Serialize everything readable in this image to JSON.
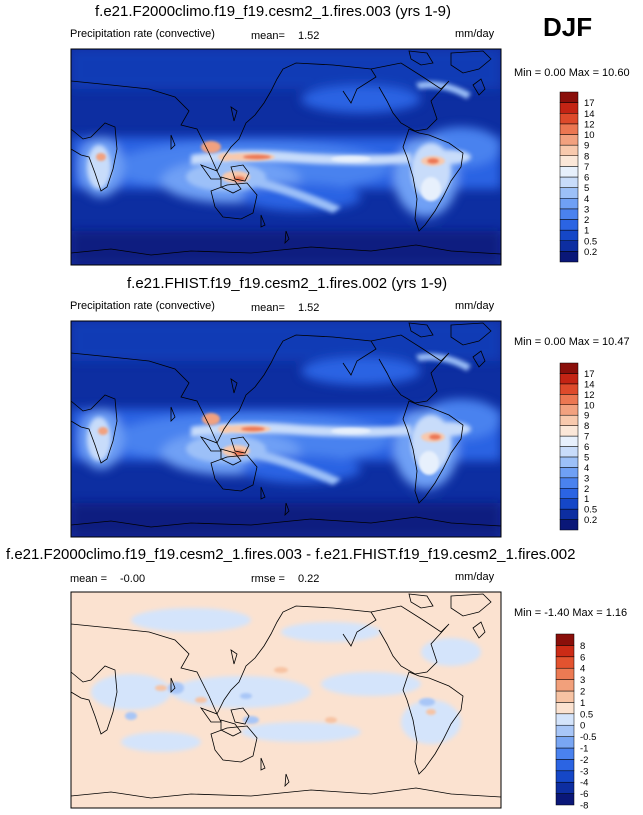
{
  "season": "DJF",
  "palette_precip": [
    "#0a1778",
    "#0d2ea1",
    "#1547c7",
    "#2b64e3",
    "#4a82ef",
    "#6fa0f5",
    "#9cc0f8",
    "#c8dcfa",
    "#e7f0fc",
    "#fbe7d8",
    "#f8c9ad",
    "#f2a17f",
    "#ec7752",
    "#de4a2b",
    "#c42414",
    "#8a0f0a"
  ],
  "palette_diff": [
    "#0a1778",
    "#0d2ea1",
    "#1547c7",
    "#2b64e3",
    "#4a82ef",
    "#79a6f3",
    "#a8c6f7",
    "#d4e4fb",
    "#fbe2d0",
    "#f7c3a3",
    "#f2a07b",
    "#ec7a53",
    "#e3532f",
    "#cc2b16",
    "#8a0f0a"
  ],
  "panels": [
    {
      "title": "f.e21.F2000climo.f19_f19.cesm2_1.fires.003 (yrs 1-9)",
      "variable": "Precipitation rate (convective)",
      "mean_label": "mean=",
      "mean_value": "1.52",
      "units": "mm/day",
      "minmax": "Min =   0.00 Max =  10.60",
      "colorbar_labels": [
        "17",
        "14",
        "12",
        "10",
        "9",
        "8",
        "7",
        "6",
        "5",
        "4",
        "3",
        "2",
        "1",
        "0.5",
        "0.2"
      ]
    },
    {
      "title": "f.e21.FHIST.f19_f19.cesm2_1.fires.002 (yrs 1-9)",
      "variable": "Precipitation rate (convective)",
      "mean_label": "mean=",
      "mean_value": "1.52",
      "units": "mm/day",
      "minmax": "Min =   0.00 Max =  10.47",
      "colorbar_labels": [
        "17",
        "14",
        "12",
        "10",
        "9",
        "8",
        "7",
        "6",
        "5",
        "4",
        "3",
        "2",
        "1",
        "0.5",
        "0.2"
      ]
    },
    {
      "title": "f.e21.F2000climo.f19_f19.cesm2_1.fires.003 - f.e21.FHIST.f19_f19.cesm2_1.fires.002",
      "mean_label": "mean =",
      "mean_value": "-0.00",
      "rmse_label": "rmse =",
      "rmse_value": "0.22",
      "units": "mm/day",
      "minmax": "Min =  -1.40 Max =   1.16",
      "colorbar_labels": [
        "8",
        "6",
        "4",
        "3",
        "2",
        "1",
        "0.5",
        "0",
        "-0.5",
        "-1",
        "-2",
        "-3",
        "-4",
        "-6",
        "-8"
      ]
    }
  ],
  "chart_data": [
    {
      "type": "heatmap",
      "title": "f.e21.F2000climo.f19_f19.cesm2_1.fires.003 (yrs 1-9)",
      "variable": "Precipitation rate (convective)",
      "units": "mm/day",
      "mean": 1.52,
      "min": 0.0,
      "max": 10.6,
      "contour_levels": [
        0.2,
        0.5,
        1,
        2,
        3,
        4,
        5,
        6,
        7,
        8,
        9,
        10,
        12,
        14,
        17
      ]
    },
    {
      "type": "heatmap",
      "title": "f.e21.FHIST.f19_f19.cesm2_1.fires.002 (yrs 1-9)",
      "variable": "Precipitation rate (convective)",
      "units": "mm/day",
      "mean": 1.52,
      "min": 0.0,
      "max": 10.47,
      "contour_levels": [
        0.2,
        0.5,
        1,
        2,
        3,
        4,
        5,
        6,
        7,
        8,
        9,
        10,
        12,
        14,
        17
      ]
    },
    {
      "type": "heatmap",
      "title": "f.e21.F2000climo.f19_f19.cesm2_1.fires.003 - f.e21.FHIST.f19_f19.cesm2_1.fires.002",
      "units": "mm/day",
      "mean": -0.0,
      "rmse": 0.22,
      "min": -1.4,
      "max": 1.16,
      "contour_levels": [
        -8,
        -6,
        -4,
        -3,
        -2,
        -1,
        -0.5,
        0,
        0.5,
        1,
        2,
        3,
        4,
        6,
        8
      ]
    }
  ]
}
